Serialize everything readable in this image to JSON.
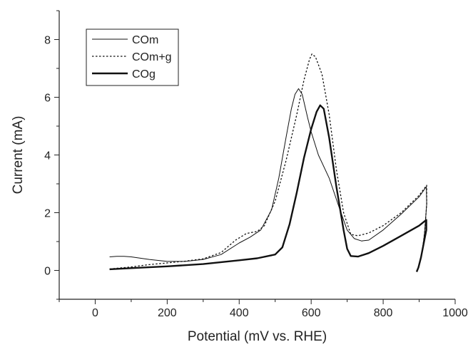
{
  "chart_data": {
    "type": "line",
    "title": "",
    "xlabel": "Potential (mV vs. RHE)",
    "ylabel": "Current (mA)",
    "xlim": [
      -100,
      1000
    ],
    "ylim": [
      -1,
      9
    ],
    "x_ticks": [
      0,
      200,
      400,
      600,
      800,
      1000
    ],
    "y_ticks": [
      0,
      2,
      4,
      6,
      8
    ],
    "grid": false,
    "legend_position": "top-left",
    "series": [
      {
        "name": "COm",
        "style": "thin-solid",
        "color": "#111111",
        "points": [
          [
            40,
            0.47
          ],
          [
            60,
            0.49
          ],
          [
            80,
            0.49
          ],
          [
            100,
            0.47
          ],
          [
            150,
            0.38
          ],
          [
            200,
            0.31
          ],
          [
            250,
            0.31
          ],
          [
            300,
            0.38
          ],
          [
            350,
            0.55
          ],
          [
            400,
            0.95
          ],
          [
            430,
            1.15
          ],
          [
            460,
            1.4
          ],
          [
            490,
            2.1
          ],
          [
            510,
            3.2
          ],
          [
            530,
            4.6
          ],
          [
            545,
            5.6
          ],
          [
            555,
            6.1
          ],
          [
            565,
            6.3
          ],
          [
            575,
            6.1
          ],
          [
            590,
            5.3
          ],
          [
            600,
            4.8
          ],
          [
            620,
            4.0
          ],
          [
            650,
            3.2
          ],
          [
            680,
            2.1
          ],
          [
            700,
            1.4
          ],
          [
            720,
            1.1
          ],
          [
            740,
            1.02
          ],
          [
            760,
            1.05
          ],
          [
            800,
            1.4
          ],
          [
            850,
            1.95
          ],
          [
            900,
            2.55
          ],
          [
            920,
            2.9
          ],
          [
            921,
            2.3
          ],
          [
            915,
            1.3
          ],
          [
            910,
            0.8
          ],
          [
            905,
            0.4
          ]
        ]
      },
      {
        "name": "COm+g",
        "style": "dotted",
        "color": "#111111",
        "points": [
          [
            40,
            0.05
          ],
          [
            100,
            0.12
          ],
          [
            150,
            0.2
          ],
          [
            200,
            0.26
          ],
          [
            250,
            0.32
          ],
          [
            300,
            0.4
          ],
          [
            350,
            0.62
          ],
          [
            390,
            1.05
          ],
          [
            420,
            1.28
          ],
          [
            450,
            1.35
          ],
          [
            470,
            1.55
          ],
          [
            500,
            2.4
          ],
          [
            530,
            3.8
          ],
          [
            560,
            5.4
          ],
          [
            580,
            6.6
          ],
          [
            595,
            7.3
          ],
          [
            602,
            7.5
          ],
          [
            612,
            7.4
          ],
          [
            630,
            6.8
          ],
          [
            650,
            5.4
          ],
          [
            670,
            3.5
          ],
          [
            690,
            2.0
          ],
          [
            710,
            1.25
          ],
          [
            730,
            1.2
          ],
          [
            760,
            1.3
          ],
          [
            800,
            1.55
          ],
          [
            850,
            2.0
          ],
          [
            900,
            2.6
          ],
          [
            921,
            2.95
          ],
          [
            921,
            2.3
          ],
          [
            915,
            1.3
          ],
          [
            910,
            0.8
          ],
          [
            905,
            0.4
          ]
        ]
      },
      {
        "name": "COg",
        "style": "thick-solid",
        "color": "#111111",
        "points": [
          [
            40,
            0.04
          ],
          [
            100,
            0.08
          ],
          [
            200,
            0.14
          ],
          [
            300,
            0.22
          ],
          [
            400,
            0.35
          ],
          [
            450,
            0.42
          ],
          [
            500,
            0.55
          ],
          [
            520,
            0.8
          ],
          [
            540,
            1.6
          ],
          [
            560,
            2.7
          ],
          [
            580,
            3.9
          ],
          [
            600,
            4.9
          ],
          [
            615,
            5.5
          ],
          [
            625,
            5.72
          ],
          [
            635,
            5.6
          ],
          [
            650,
            4.6
          ],
          [
            670,
            2.9
          ],
          [
            690,
            1.4
          ],
          [
            700,
            0.75
          ],
          [
            710,
            0.5
          ],
          [
            730,
            0.48
          ],
          [
            760,
            0.6
          ],
          [
            800,
            0.85
          ],
          [
            850,
            1.2
          ],
          [
            900,
            1.55
          ],
          [
            920,
            1.75
          ],
          [
            920,
            1.4
          ],
          [
            912,
            0.9
          ],
          [
            905,
            0.45
          ],
          [
            898,
            0.1
          ],
          [
            893,
            -0.05
          ]
        ]
      }
    ]
  }
}
